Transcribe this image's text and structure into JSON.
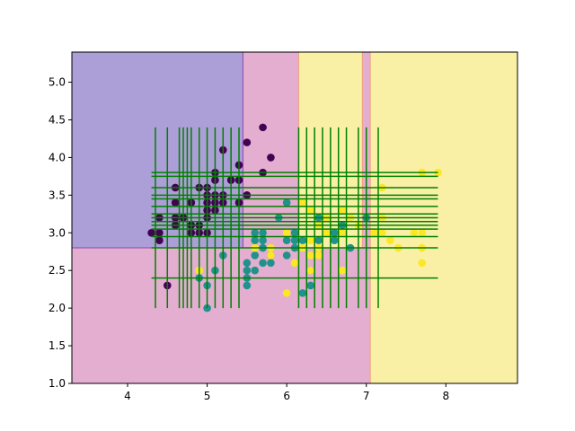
{
  "chart_data": {
    "type": "scatter",
    "title": "",
    "xlabel": "",
    "ylabel": "",
    "xlim": [
      3.3,
      8.9
    ],
    "ylim": [
      1.0,
      5.4
    ],
    "x_ticks": [
      4,
      5,
      6,
      7,
      8
    ],
    "y_ticks": [
      1.0,
      1.5,
      2.0,
      2.5,
      3.0,
      3.5,
      4.0,
      4.5,
      5.0
    ],
    "grid": false,
    "legend": "none",
    "regions": [
      {
        "x0": 3.3,
        "x1": 5.45,
        "y0": 2.8,
        "y1": 5.4,
        "class": 0,
        "color": "#ac9ed6"
      },
      {
        "x0": 3.3,
        "x1": 7.05,
        "y0": 1.0,
        "y1": 2.8,
        "class": 1,
        "color": "#e3aed0"
      },
      {
        "x0": 5.45,
        "x1": 6.15,
        "y0": 2.8,
        "y1": 5.4,
        "class": 1,
        "color": "#e3aed0"
      },
      {
        "x0": 6.15,
        "x1": 6.95,
        "y0": 2.8,
        "y1": 5.4,
        "class": 2,
        "color": "#f9f0a6"
      },
      {
        "x0": 6.95,
        "x1": 7.05,
        "y0": 2.8,
        "y1": 5.4,
        "class": 1,
        "color": "#e3aed0"
      },
      {
        "x0": 7.05,
        "x1": 8.9,
        "y0": 1.0,
        "y1": 5.4,
        "class": 2,
        "color": "#f9f0a6"
      }
    ],
    "region_edges": [
      {
        "x1": 3.3,
        "y1": 2.8,
        "x2": 5.45,
        "y2": 2.8,
        "color": "#8e44ad"
      },
      {
        "x1": 5.45,
        "y1": 2.8,
        "x2": 5.45,
        "y2": 5.4,
        "color": "#8e44ad"
      },
      {
        "x1": 6.15,
        "y1": 2.8,
        "x2": 6.15,
        "y2": 5.4,
        "color": "#f2a07a"
      },
      {
        "x1": 6.95,
        "y1": 2.8,
        "x2": 6.95,
        "y2": 5.4,
        "color": "#f2a07a"
      },
      {
        "x1": 7.05,
        "y1": 1.0,
        "x2": 7.05,
        "y2": 5.4,
        "color": "#f2a07a"
      }
    ],
    "class_colors": [
      "#440154",
      "#21918c",
      "#fde725"
    ],
    "guide_line_color": "#008000",
    "vertical_lines": {
      "x": [
        4.35,
        4.5,
        4.65,
        4.7,
        4.75,
        4.8,
        4.9,
        5.0,
        5.1,
        5.2,
        5.3,
        5.4,
        6.15,
        6.25,
        6.35,
        6.45,
        6.55,
        6.65,
        6.75,
        6.9,
        7.0,
        7.15
      ],
      "y_range": [
        2.0,
        4.4
      ]
    },
    "horizontal_lines": {
      "y": [
        2.4,
        2.8,
        2.95,
        3.05,
        3.1,
        3.15,
        3.2,
        3.25,
        3.35,
        3.45,
        3.5,
        3.6,
        3.75,
        3.8
      ],
      "x_range": [
        4.3,
        7.9
      ]
    },
    "points": [
      {
        "x": 4.3,
        "y": 3.0,
        "class": 0
      },
      {
        "x": 4.4,
        "y": 2.9,
        "class": 0
      },
      {
        "x": 4.4,
        "y": 3.0,
        "class": 0
      },
      {
        "x": 4.4,
        "y": 3.2,
        "class": 0
      },
      {
        "x": 4.5,
        "y": 2.3,
        "class": 0
      },
      {
        "x": 4.6,
        "y": 3.1,
        "class": 0
      },
      {
        "x": 4.6,
        "y": 3.2,
        "class": 0
      },
      {
        "x": 4.6,
        "y": 3.4,
        "class": 0
      },
      {
        "x": 4.6,
        "y": 3.6,
        "class": 0
      },
      {
        "x": 4.7,
        "y": 3.2,
        "class": 0
      },
      {
        "x": 4.8,
        "y": 3.0,
        "class": 0
      },
      {
        "x": 4.8,
        "y": 3.1,
        "class": 0
      },
      {
        "x": 4.8,
        "y": 3.4,
        "class": 0
      },
      {
        "x": 4.9,
        "y": 3.0,
        "class": 0
      },
      {
        "x": 4.9,
        "y": 3.1,
        "class": 0
      },
      {
        "x": 4.9,
        "y": 3.6,
        "class": 0
      },
      {
        "x": 5.0,
        "y": 3.0,
        "class": 0
      },
      {
        "x": 5.0,
        "y": 3.2,
        "class": 0
      },
      {
        "x": 5.0,
        "y": 3.3,
        "class": 0
      },
      {
        "x": 5.0,
        "y": 3.4,
        "class": 0
      },
      {
        "x": 5.0,
        "y": 3.5,
        "class": 0
      },
      {
        "x": 5.0,
        "y": 3.6,
        "class": 0
      },
      {
        "x": 5.1,
        "y": 3.3,
        "class": 0
      },
      {
        "x": 5.1,
        "y": 3.4,
        "class": 0
      },
      {
        "x": 5.1,
        "y": 3.5,
        "class": 0
      },
      {
        "x": 5.1,
        "y": 3.7,
        "class": 0
      },
      {
        "x": 5.1,
        "y": 3.8,
        "class": 0
      },
      {
        "x": 5.2,
        "y": 3.4,
        "class": 0
      },
      {
        "x": 5.2,
        "y": 3.5,
        "class": 0
      },
      {
        "x": 5.2,
        "y": 4.1,
        "class": 0
      },
      {
        "x": 5.3,
        "y": 3.7,
        "class": 0
      },
      {
        "x": 5.4,
        "y": 3.4,
        "class": 0
      },
      {
        "x": 5.4,
        "y": 3.7,
        "class": 0
      },
      {
        "x": 5.4,
        "y": 3.9,
        "class": 0
      },
      {
        "x": 5.5,
        "y": 3.5,
        "class": 0
      },
      {
        "x": 5.5,
        "y": 4.2,
        "class": 0
      },
      {
        "x": 5.7,
        "y": 3.8,
        "class": 0
      },
      {
        "x": 5.7,
        "y": 4.4,
        "class": 0
      },
      {
        "x": 5.8,
        "y": 4.0,
        "class": 0
      },
      {
        "x": 4.9,
        "y": 2.4,
        "class": 1
      },
      {
        "x": 5.0,
        "y": 2.0,
        "class": 1
      },
      {
        "x": 5.0,
        "y": 2.3,
        "class": 1
      },
      {
        "x": 5.1,
        "y": 2.5,
        "class": 1
      },
      {
        "x": 5.2,
        "y": 2.7,
        "class": 1
      },
      {
        "x": 5.5,
        "y": 2.3,
        "class": 1
      },
      {
        "x": 5.5,
        "y": 2.4,
        "class": 1
      },
      {
        "x": 5.5,
        "y": 2.5,
        "class": 1
      },
      {
        "x": 5.5,
        "y": 2.6,
        "class": 1
      },
      {
        "x": 5.6,
        "y": 2.5,
        "class": 1
      },
      {
        "x": 5.6,
        "y": 2.7,
        "class": 1
      },
      {
        "x": 5.6,
        "y": 2.9,
        "class": 1
      },
      {
        "x": 5.6,
        "y": 3.0,
        "class": 1
      },
      {
        "x": 5.7,
        "y": 2.6,
        "class": 1
      },
      {
        "x": 5.7,
        "y": 2.8,
        "class": 1
      },
      {
        "x": 5.7,
        "y": 2.9,
        "class": 1
      },
      {
        "x": 5.7,
        "y": 3.0,
        "class": 1
      },
      {
        "x": 5.8,
        "y": 2.6,
        "class": 1
      },
      {
        "x": 5.8,
        "y": 2.7,
        "class": 1
      },
      {
        "x": 5.9,
        "y": 3.2,
        "class": 1
      },
      {
        "x": 6.0,
        "y": 2.7,
        "class": 1
      },
      {
        "x": 6.0,
        "y": 2.9,
        "class": 1
      },
      {
        "x": 6.0,
        "y": 3.4,
        "class": 1
      },
      {
        "x": 6.1,
        "y": 2.8,
        "class": 1
      },
      {
        "x": 6.1,
        "y": 2.9,
        "class": 1
      },
      {
        "x": 6.1,
        "y": 3.0,
        "class": 1
      },
      {
        "x": 6.2,
        "y": 2.2,
        "class": 1
      },
      {
        "x": 6.2,
        "y": 2.9,
        "class": 1
      },
      {
        "x": 6.3,
        "y": 2.3,
        "class": 1
      },
      {
        "x": 6.3,
        "y": 2.5,
        "class": 1
      },
      {
        "x": 6.4,
        "y": 2.9,
        "class": 1
      },
      {
        "x": 6.4,
        "y": 3.2,
        "class": 1
      },
      {
        "x": 6.6,
        "y": 2.9,
        "class": 1
      },
      {
        "x": 6.6,
        "y": 3.0,
        "class": 1
      },
      {
        "x": 6.7,
        "y": 3.1,
        "class": 1
      },
      {
        "x": 6.8,
        "y": 2.8,
        "class": 1
      },
      {
        "x": 7.0,
        "y": 3.2,
        "class": 1
      },
      {
        "x": 4.9,
        "y": 2.5,
        "class": 2
      },
      {
        "x": 5.6,
        "y": 2.8,
        "class": 2
      },
      {
        "x": 5.8,
        "y": 2.7,
        "class": 2
      },
      {
        "x": 5.8,
        "y": 2.8,
        "class": 2
      },
      {
        "x": 6.0,
        "y": 2.2,
        "class": 2
      },
      {
        "x": 6.0,
        "y": 3.0,
        "class": 2
      },
      {
        "x": 6.1,
        "y": 2.6,
        "class": 2
      },
      {
        "x": 6.2,
        "y": 2.8,
        "class": 2
      },
      {
        "x": 6.2,
        "y": 3.4,
        "class": 2
      },
      {
        "x": 6.3,
        "y": 2.5,
        "class": 2
      },
      {
        "x": 6.3,
        "y": 2.7,
        "class": 2
      },
      {
        "x": 6.3,
        "y": 2.9,
        "class": 2
      },
      {
        "x": 6.3,
        "y": 3.3,
        "class": 2
      },
      {
        "x": 6.4,
        "y": 2.7,
        "class": 2
      },
      {
        "x": 6.4,
        "y": 2.8,
        "class": 2
      },
      {
        "x": 6.4,
        "y": 3.1,
        "class": 2
      },
      {
        "x": 6.5,
        "y": 3.0,
        "class": 2
      },
      {
        "x": 6.5,
        "y": 3.2,
        "class": 2
      },
      {
        "x": 6.7,
        "y": 2.5,
        "class": 2
      },
      {
        "x": 6.7,
        "y": 3.0,
        "class": 2
      },
      {
        "x": 6.7,
        "y": 3.3,
        "class": 2
      },
      {
        "x": 6.8,
        "y": 3.2,
        "class": 2
      },
      {
        "x": 6.9,
        "y": 3.1,
        "class": 2
      },
      {
        "x": 7.1,
        "y": 3.0,
        "class": 2
      },
      {
        "x": 7.2,
        "y": 3.0,
        "class": 2
      },
      {
        "x": 7.2,
        "y": 3.2,
        "class": 2
      },
      {
        "x": 7.2,
        "y": 3.6,
        "class": 2
      },
      {
        "x": 7.3,
        "y": 2.9,
        "class": 2
      },
      {
        "x": 7.4,
        "y": 2.8,
        "class": 2
      },
      {
        "x": 7.6,
        "y": 3.0,
        "class": 2
      },
      {
        "x": 7.7,
        "y": 2.6,
        "class": 2
      },
      {
        "x": 7.7,
        "y": 2.8,
        "class": 2
      },
      {
        "x": 7.7,
        "y": 3.0,
        "class": 2
      },
      {
        "x": 7.7,
        "y": 3.8,
        "class": 2
      },
      {
        "x": 7.9,
        "y": 3.8,
        "class": 2
      }
    ]
  }
}
